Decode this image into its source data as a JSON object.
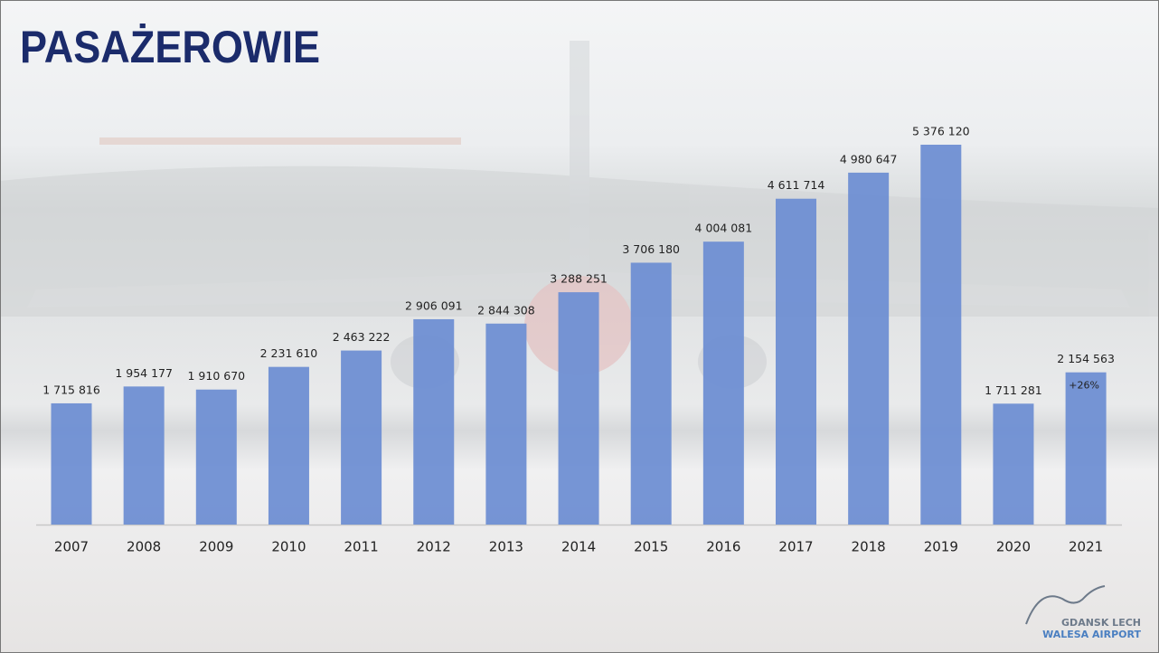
{
  "chart_data": {
    "type": "bar",
    "title": "PASAŻEROWIE",
    "categories": [
      "2007",
      "2008",
      "2009",
      "2010",
      "2011",
      "2012",
      "2013",
      "2014",
      "2015",
      "2016",
      "2017",
      "2018",
      "2019",
      "2020",
      "2021"
    ],
    "values": [
      1715816,
      1954177,
      1910670,
      2231610,
      2463222,
      2906091,
      2844308,
      3288251,
      3706180,
      4004081,
      4611714,
      4980647,
      5376120,
      1711281,
      2154563
    ],
    "value_labels": [
      "1 715 816",
      "1 954 177",
      "1 910 670",
      "2 231 610",
      "2 463 222",
      "2 906 091",
      "2 844 308",
      "3 288 251",
      "3 706 180",
      "4 004 081",
      "4 611 714",
      "4 980 647",
      "5 376 120",
      "1 711 281",
      "2 154 563"
    ],
    "color": "#6f8fd3",
    "annotation": "+26%"
  },
  "logo": {
    "line1": "GDANSK LECH",
    "line2": "WALESA AIRPORT"
  }
}
